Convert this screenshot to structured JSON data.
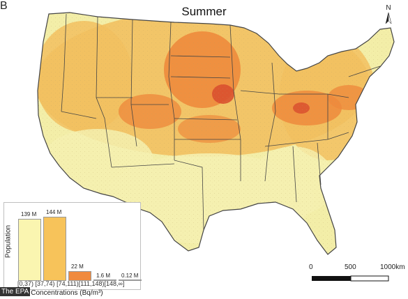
{
  "panel_letter": "B",
  "title": "Summer",
  "north_label": "N",
  "scale": {
    "labels": [
      "0",
      "500",
      "1000km"
    ]
  },
  "credit": "The EPA",
  "legend": {
    "ylabel": "Population",
    "xlabel": "Radon Concentrations (Bq/m³)",
    "bins": [
      "[0,37)",
      "[37,74)",
      "[74,111)",
      "[111,148)",
      "[148,∞]"
    ],
    "values": [
      "139 M",
      "144 M",
      "22 M",
      "1.6 M",
      "0.12 M"
    ],
    "colors": [
      "#faf5b0",
      "#f7c35a",
      "#f08a3e",
      "#e8603a",
      "#c73a2a"
    ]
  },
  "colors": {
    "low": "#f3eea8",
    "mid": "#f2c060",
    "high": "#ee8a3c",
    "veryhigh": "#d9502f",
    "borders": "#444444"
  },
  "chart_data": {
    "type": "bar",
    "categories": [
      "[0,37)",
      "[37,74)",
      "[74,111)",
      "[111,148)",
      "[148,∞]"
    ],
    "values": [
      139,
      144,
      22,
      1.6,
      0.12
    ],
    "unit": "M",
    "xlabel": "Radon Concentrations (Bq/m³)",
    "ylabel": "Population"
  }
}
